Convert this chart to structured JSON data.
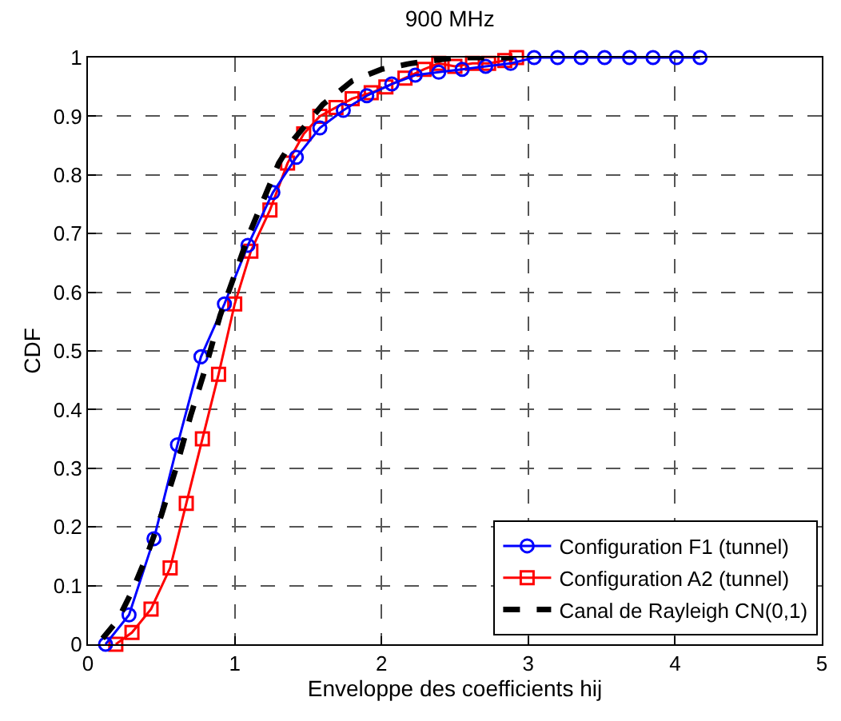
{
  "chart_data": {
    "type": "line",
    "title": "900 MHz",
    "xlabel": "Enveloppe des coefficients hij",
    "ylabel": "CDF",
    "xlim": [
      0,
      5
    ],
    "xticks": [
      0,
      1,
      2,
      3,
      4,
      5
    ],
    "ylim": [
      0,
      1
    ],
    "yticks": [
      0,
      0.1,
      0.2,
      0.3,
      0.4,
      0.5,
      0.6,
      0.7,
      0.8,
      0.9,
      1
    ],
    "grid": true,
    "legend": "bottom right",
    "series": [
      {
        "name": "Configuration F1 (tunnel)",
        "color": "#0000ff",
        "marker": "circle",
        "line_style": "solid",
        "x": [
          0.12,
          0.28,
          0.45,
          0.61,
          0.77,
          0.93,
          1.09,
          1.26,
          1.42,
          1.58,
          1.74,
          1.9,
          2.07,
          2.23,
          2.39,
          2.55,
          2.71,
          2.88,
          3.04,
          3.2,
          3.36,
          3.52,
          3.69,
          3.85,
          4.01,
          4.17
        ],
        "values": [
          0,
          0.05,
          0.18,
          0.34,
          0.49,
          0.58,
          0.68,
          0.77,
          0.83,
          0.88,
          0.91,
          0.935,
          0.955,
          0.97,
          0.975,
          0.98,
          0.985,
          0.99,
          1,
          1,
          1,
          1,
          1,
          1,
          1,
          1
        ]
      },
      {
        "name": "Configuration A2 (tunnel)",
        "color": "#ff0000",
        "marker": "square",
        "line_style": "solid",
        "x": [
          0.19,
          0.3,
          0.43,
          0.56,
          0.67,
          0.78,
          0.89,
          1.0,
          1.11,
          1.24,
          1.36,
          1.47,
          1.58,
          1.69,
          1.8,
          1.93,
          2.03,
          2.16,
          2.29,
          2.39,
          2.5,
          2.62,
          2.73,
          2.84,
          2.92
        ],
        "values": [
          0,
          0.02,
          0.06,
          0.13,
          0.24,
          0.35,
          0.46,
          0.58,
          0.67,
          0.74,
          0.82,
          0.87,
          0.9,
          0.915,
          0.93,
          0.94,
          0.95,
          0.965,
          0.98,
          0.99,
          0.985,
          0.99,
          0.99,
          0.995,
          1
        ]
      },
      {
        "name": "Canal de Rayleigh CN(0,1)",
        "color": "#000000",
        "marker": "none",
        "line_style": "dashed",
        "x": [
          0.1,
          0.2,
          0.3,
          0.4,
          0.5,
          0.6,
          0.7,
          0.8,
          0.9,
          1.0,
          1.1,
          1.2,
          1.3,
          1.4,
          1.5,
          1.6,
          1.8,
          2.0,
          2.2,
          2.5,
          2.9
        ],
        "values": [
          0.01,
          0.04,
          0.09,
          0.15,
          0.22,
          0.3,
          0.39,
          0.47,
          0.56,
          0.63,
          0.7,
          0.76,
          0.82,
          0.86,
          0.89,
          0.92,
          0.96,
          0.98,
          0.99,
          1,
          1
        ]
      }
    ]
  }
}
